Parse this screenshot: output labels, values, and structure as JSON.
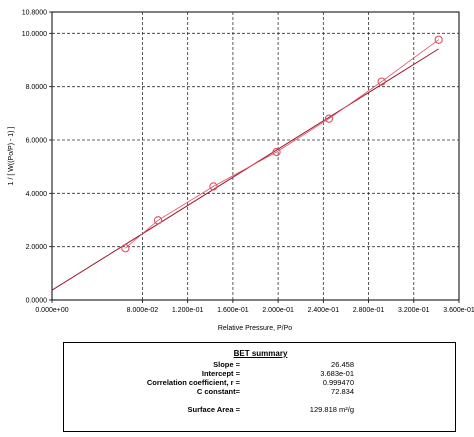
{
  "chart_data": {
    "type": "scatter",
    "xlabel": "Relative Pressure, P/Po",
    "ylabel": "1 / [ W((Po/P) - 1) ]",
    "xlim": [
      0.0,
      0.36
    ],
    "ylim": [
      0.0,
      10.8
    ],
    "x_ticks": [
      {
        "value": 0.0,
        "label": "0.000e+00"
      },
      {
        "value": 0.08,
        "label": "8.000e-02"
      },
      {
        "value": 0.12,
        "label": "1.200e-01"
      },
      {
        "value": 0.16,
        "label": "1.600e-01"
      },
      {
        "value": 0.2,
        "label": "2.000e-01"
      },
      {
        "value": 0.24,
        "label": "2.400e-01"
      },
      {
        "value": 0.28,
        "label": "2.800e-01"
      },
      {
        "value": 0.32,
        "label": "3.200e-01"
      },
      {
        "value": 0.36,
        "label": "3.600e-01"
      }
    ],
    "y_ticks": [
      {
        "value": 0.0,
        "label": "0.0000"
      },
      {
        "value": 2.0,
        "label": "2.0000"
      },
      {
        "value": 4.0,
        "label": "4.0000"
      },
      {
        "value": 6.0,
        "label": "6.0000"
      },
      {
        "value": 8.0,
        "label": "8.0000"
      },
      {
        "value": 10.0,
        "label": "10.0000"
      },
      {
        "value": 10.8,
        "label": "10.8000"
      }
    ],
    "grid": true,
    "series": [
      {
        "x": [
          0.0649,
          0.0938,
          0.1428,
          0.1986,
          0.245,
          0.2916,
          0.342
        ],
        "y": [
          1.94,
          2.99,
          4.26,
          5.55,
          6.8,
          8.19,
          9.76
        ],
        "marker": "circle",
        "color": "#e05060"
      }
    ],
    "fit_line": {
      "slope": 26.458,
      "intercept": 0.3683,
      "x_range": [
        0.0,
        0.342
      ],
      "color": "#a01830"
    }
  },
  "summary": {
    "title": "BET summary",
    "rows": [
      {
        "label": "Slope =",
        "value": "26.458"
      },
      {
        "label": "Intercept =",
        "value": "3.683e-01"
      },
      {
        "label": "Correlation coefficient, r =",
        "value": "0.999470"
      },
      {
        "label": "C constant=",
        "value": "72.834"
      }
    ],
    "surface_area": {
      "label": "Surface Area =",
      "value": "129.818 m²/g"
    }
  }
}
